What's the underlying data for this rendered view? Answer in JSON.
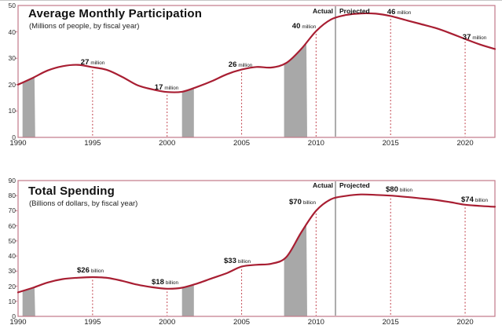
{
  "colors": {
    "trend_line": "#a81e32",
    "dashed_callout": "#c2454f",
    "frame": "#c27888",
    "recession_band": "#a8a8a8",
    "divider": "#ababab",
    "text": "#1a1a1a"
  },
  "chart_data": [
    {
      "type": "line",
      "id": "participation",
      "title": "Average Monthly Participation",
      "subtitle": "(Millions of people, by fiscal year)",
      "section_labels": {
        "actual": "Actual",
        "projected": "Projected"
      },
      "xlabel": "fiscal year",
      "ylabel": "Millions of people",
      "xlim": [
        1990,
        2022
      ],
      "ylim": [
        0,
        50
      ],
      "x_ticks": [
        1990,
        1995,
        2000,
        2005,
        2010,
        2015,
        2020
      ],
      "y_ticks": [
        0,
        10,
        20,
        30,
        40,
        50
      ],
      "divider_year": 2011.3,
      "recession_bands": [
        [
          1990.3,
          1991.15
        ],
        [
          2001.0,
          2001.8
        ],
        [
          2007.85,
          2009.4
        ]
      ],
      "x": [
        1990,
        1991,
        1992,
        1993,
        1994,
        1995,
        1996,
        1997,
        1998,
        1999,
        2000,
        2001,
        2002,
        2003,
        2004,
        2005,
        2006,
        2007,
        2008,
        2009,
        2010,
        2011,
        2012,
        2013,
        2014,
        2015,
        2016,
        2017,
        2018,
        2019,
        2020,
        2021,
        2022
      ],
      "series": [
        {
          "name": "Average monthly participation (millions of people)",
          "values": [
            20.0,
            22.6,
            25.4,
            27.0,
            27.5,
            26.6,
            25.5,
            22.9,
            19.8,
            18.2,
            17.2,
            17.3,
            19.1,
            21.3,
            23.9,
            25.7,
            26.7,
            26.5,
            28.2,
            33.5,
            40.3,
            44.7,
            46.4,
            47.0,
            46.9,
            46.0,
            44.5,
            43.0,
            41.5,
            39.5,
            37.3,
            35.2,
            33.5
          ]
        }
      ],
      "annotations": [
        {
          "year": 1995,
          "num": "27",
          "unit": "million"
        },
        {
          "year": 2000,
          "num": "17",
          "unit": "million"
        },
        {
          "year": 2005,
          "num": "26",
          "unit": "million"
        },
        {
          "year": 2010,
          "num": "40",
          "unit": "million"
        },
        {
          "year": 2015,
          "num": "46",
          "unit": "million"
        },
        {
          "year": 2020,
          "num": "37",
          "unit": "million"
        }
      ],
      "grid": false,
      "legend": "none"
    },
    {
      "type": "line",
      "id": "spending",
      "title": "Total Spending",
      "subtitle": "(Billions of dollars, by fiscal year)",
      "section_labels": {
        "actual": "Actual",
        "projected": "Projected"
      },
      "xlabel": "fiscal year",
      "ylabel": "Billions of dollars",
      "xlim": [
        1990,
        2022
      ],
      "ylim": [
        0,
        90
      ],
      "x_ticks": [
        1990,
        1995,
        2000,
        2005,
        2010,
        2015,
        2020
      ],
      "y_ticks": [
        0,
        10,
        20,
        30,
        40,
        50,
        60,
        70,
        80,
        90
      ],
      "divider_year": 2011.3,
      "recession_bands": [
        [
          1990.3,
          1991.15
        ],
        [
          2001.0,
          2001.8
        ],
        [
          2007.85,
          2009.4
        ]
      ],
      "x": [
        1990,
        1991,
        1992,
        1993,
        1994,
        1995,
        1996,
        1997,
        1998,
        1999,
        2000,
        2001,
        2002,
        2003,
        2004,
        2005,
        2006,
        2007,
        2008,
        2009,
        2010,
        2011,
        2012,
        2013,
        2014,
        2015,
        2016,
        2017,
        2018,
        2019,
        2020,
        2021,
        2022
      ],
      "series": [
        {
          "name": "Total spending (billions of dollars)",
          "values": [
            15.9,
            19.0,
            22.5,
            24.7,
            25.6,
            26.0,
            25.5,
            23.5,
            21.0,
            19.3,
            18.3,
            19.0,
            21.7,
            25.2,
            28.6,
            33.0,
            34.2,
            34.9,
            39.3,
            55.6,
            70.0,
            77.6,
            79.8,
            80.8,
            80.5,
            80.0,
            79.2,
            78.2,
            77.2,
            75.7,
            74.0,
            73.2,
            72.6
          ]
        }
      ],
      "annotations": [
        {
          "year": 1995,
          "num": "$26",
          "unit": "billion"
        },
        {
          "year": 2000,
          "num": "$18",
          "unit": "billion"
        },
        {
          "year": 2005,
          "num": "$33",
          "unit": "billion"
        },
        {
          "year": 2010,
          "num": "$70",
          "unit": "billion"
        },
        {
          "year": 2015,
          "num": "$80",
          "unit": "billion"
        },
        {
          "year": 2020,
          "num": "$74",
          "unit": "billion"
        }
      ],
      "grid": false,
      "legend": "none"
    }
  ]
}
